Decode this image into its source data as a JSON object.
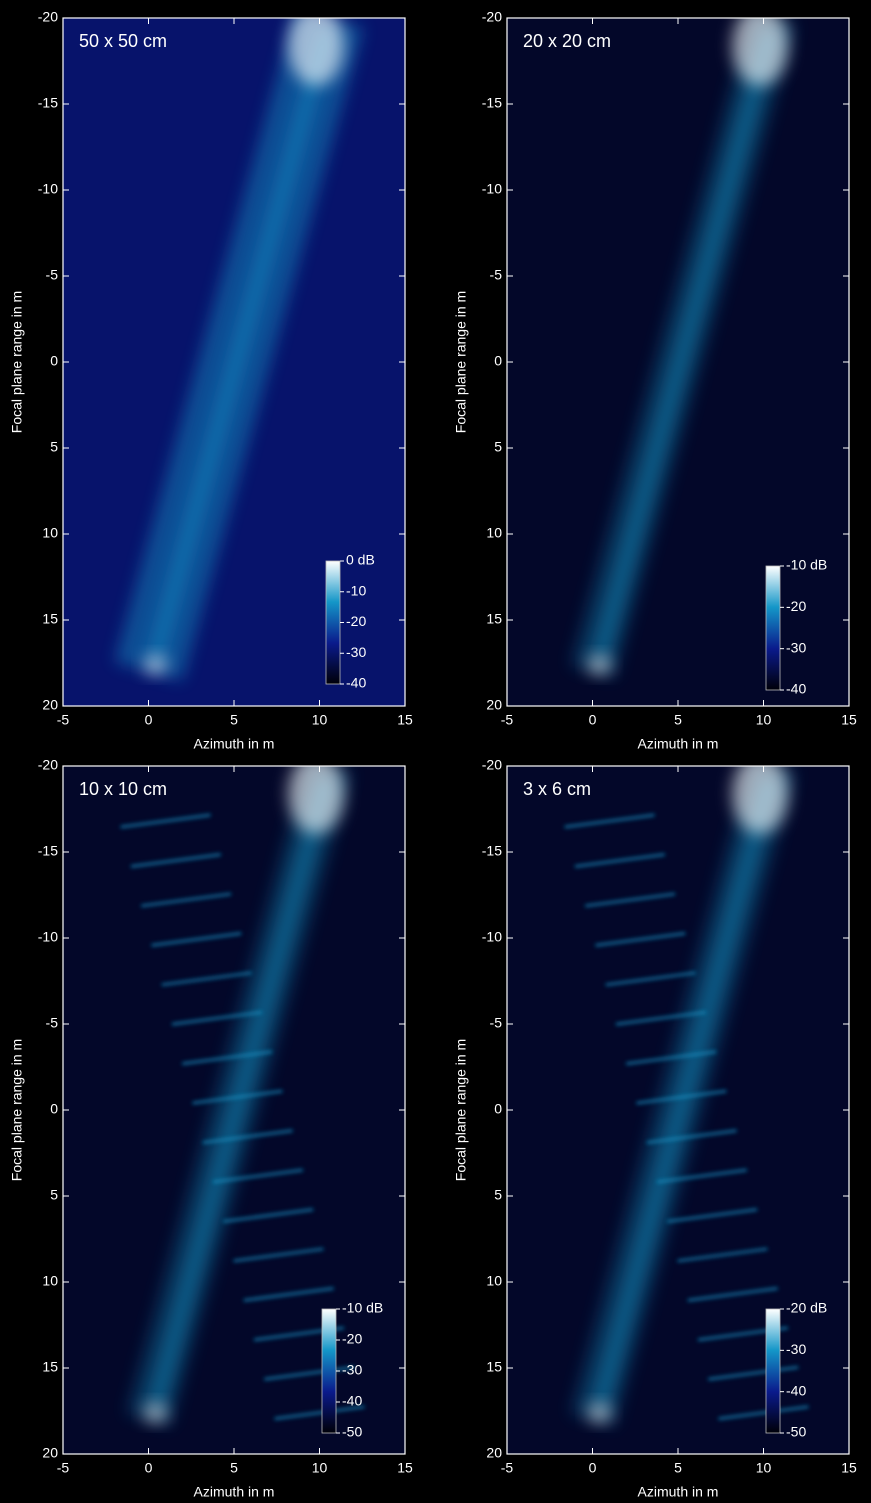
{
  "chart_data": [
    {
      "type": "heatmap",
      "title": "50 x 50 cm",
      "xlabel": "Azimuth in m",
      "ylabel": "Focal plane range in m",
      "xlim": [
        -5,
        15
      ],
      "xticks": [
        -5,
        0,
        5,
        10,
        15
      ],
      "ylim": [
        -20,
        20
      ],
      "yticks": [
        -20,
        -15,
        -10,
        -5,
        0,
        5,
        10,
        15,
        20
      ],
      "colormap": [
        "#000008",
        "#0a1a8c",
        "#1496c8",
        "#ffffff"
      ],
      "colorbar": {
        "clim": [
          -40,
          0
        ],
        "ticks": [
          {
            "value": 0,
            "label": "0 dB"
          },
          -10,
          -20,
          -30,
          -40
        ]
      }
    },
    {
      "type": "heatmap",
      "title": "20 x 20 cm",
      "xlabel": "Azimuth in m",
      "ylabel": "Focal plane range in m",
      "xlim": [
        -5,
        15
      ],
      "xticks": [
        -5,
        0,
        5,
        10,
        15
      ],
      "ylim": [
        -20,
        20
      ],
      "yticks": [
        -20,
        -15,
        -10,
        -5,
        0,
        5,
        10,
        15,
        20
      ],
      "colormap": [
        "#000008",
        "#0a1a8c",
        "#1496c8",
        "#ffffff"
      ],
      "colorbar": {
        "clim": [
          -40,
          -10
        ],
        "ticks": [
          {
            "value": -10,
            "label": "-10 dB"
          },
          -20,
          -30,
          -40
        ]
      }
    },
    {
      "type": "heatmap",
      "title": "10 x 10 cm",
      "xlabel": "Azimuth in m",
      "ylabel": "Focal plane range in m",
      "xlim": [
        -5,
        15
      ],
      "xticks": [
        -5,
        0,
        5,
        10,
        15
      ],
      "ylim": [
        -20,
        20
      ],
      "yticks": [
        -20,
        -15,
        -10,
        -5,
        0,
        5,
        10,
        15,
        20
      ],
      "colormap": [
        "#000008",
        "#0a1a8c",
        "#1496c8",
        "#ffffff"
      ],
      "colorbar": {
        "clim": [
          -50,
          -10
        ],
        "ticks": [
          {
            "value": -10,
            "label": "-10 dB"
          },
          -20,
          -30,
          -40,
          -50
        ]
      }
    },
    {
      "type": "heatmap",
      "title": "3 x 6 cm",
      "xlabel": "Azimuth in m",
      "ylabel": "Focal plane range in m",
      "xlim": [
        -5,
        15
      ],
      "xticks": [
        -5,
        0,
        5,
        10,
        15
      ],
      "ylim": [
        -20,
        20
      ],
      "yticks": [
        -20,
        -15,
        -10,
        -5,
        0,
        5,
        10,
        15,
        20
      ],
      "colormap": [
        "#000008",
        "#0a1a8c",
        "#1496c8",
        "#ffffff"
      ],
      "colorbar": {
        "clim": [
          -50,
          -20
        ],
        "ticks": [
          {
            "value": -20,
            "label": "-20 dB"
          },
          -30,
          -40,
          -50
        ]
      }
    }
  ]
}
